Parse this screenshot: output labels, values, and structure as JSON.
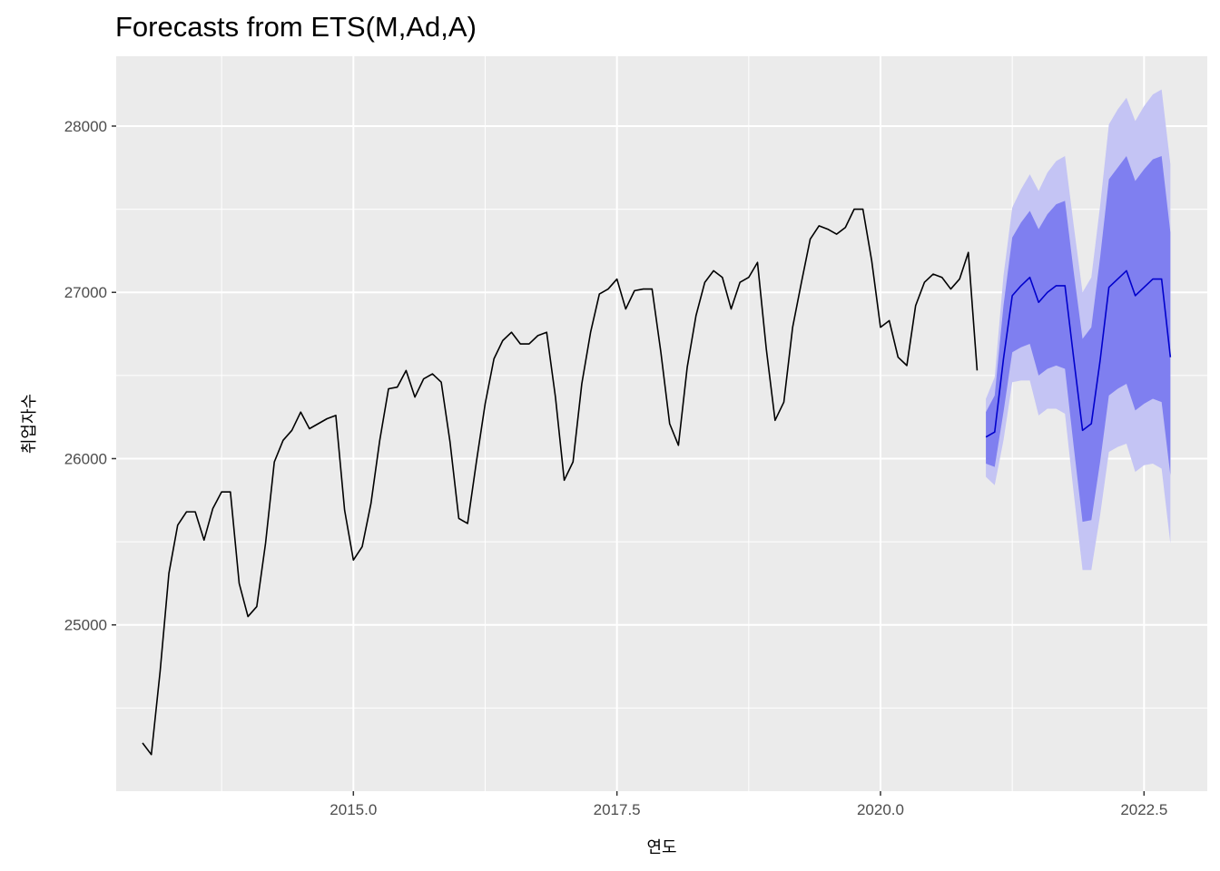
{
  "chart_data": {
    "type": "line",
    "title": "Forecasts from ETS(M,Ad,A)",
    "xlabel": "연도",
    "ylabel": "취업자수",
    "xlim": [
      2012.75,
      2023.1
    ],
    "ylim": [
      24000,
      28420
    ],
    "x_ticks": [
      2015.0,
      2017.5,
      2020.0,
      2022.5
    ],
    "x_tick_labels": [
      "2015.0",
      "2017.5",
      "2020.0",
      "2022.5"
    ],
    "y_ticks": [
      25000,
      26000,
      27000,
      28000
    ],
    "y_tick_labels": [
      "25000",
      "26000",
      "27000",
      "28000"
    ],
    "grid": true,
    "legend": "none",
    "colors": {
      "panel": "#ebebeb",
      "grid": "#ffffff",
      "history": "#000000",
      "forecast": "#0000cc",
      "band80": "#7f7ff0",
      "band95": "#c4c4f4"
    },
    "history": {
      "start": 2013.0,
      "frequency": 12,
      "values": [
        24290,
        24220,
        24720,
        25310,
        25600,
        25680,
        25680,
        25510,
        25700,
        25800,
        25800,
        25250,
        25050,
        25110,
        25490,
        25980,
        26110,
        26170,
        26280,
        26180,
        26210,
        26240,
        26260,
        25690,
        25390,
        25470,
        25730,
        26110,
        26420,
        26430,
        26530,
        26370,
        26480,
        26510,
        26460,
        26100,
        25640,
        25610,
        25980,
        26330,
        26600,
        26710,
        26760,
        26690,
        26690,
        26740,
        26760,
        26370,
        25870,
        25980,
        26450,
        26760,
        26990,
        27020,
        27080,
        26900,
        27010,
        27020,
        27020,
        26640,
        26210,
        26080,
        26550,
        26860,
        27060,
        27130,
        27090,
        26900,
        27060,
        27090,
        27180,
        26660,
        26230,
        26340,
        26790,
        27060,
        27320,
        27400,
        27380,
        27350,
        27390,
        27500,
        27500,
        27190,
        26790,
        26830,
        26610,
        26560,
        26920,
        27060,
        27110,
        27090,
        27020,
        27080,
        27240,
        26530
      ]
    },
    "forecast": {
      "start": 2021.0,
      "frequency": 12,
      "mean": [
        26130,
        26160,
        26600,
        26980,
        27040,
        27090,
        26940,
        27000,
        27040,
        27040,
        26600,
        26170,
        26210,
        26590,
        27030,
        27080,
        27130,
        26980,
        27030,
        27080,
        27080,
        26610
      ],
      "lo80": [
        25970,
        25950,
        26280,
        26640,
        26670,
        26690,
        26500,
        26540,
        26560,
        26540,
        26070,
        25620,
        25630,
        25980,
        26380,
        26420,
        26450,
        26290,
        26330,
        26360,
        26340,
        25900
      ],
      "hi80": [
        26280,
        26380,
        26920,
        27330,
        27420,
        27490,
        27380,
        27470,
        27530,
        27550,
        27120,
        26720,
        26790,
        27210,
        27680,
        27750,
        27820,
        27670,
        27740,
        27800,
        27820,
        27360
      ],
      "lo95": [
        25890,
        25840,
        26110,
        26460,
        26470,
        26470,
        26260,
        26300,
        26300,
        26270,
        25790,
        25330,
        25330,
        25660,
        26040,
        26070,
        26090,
        25920,
        25960,
        25970,
        25940,
        25490
      ],
      "hi95": [
        26360,
        26490,
        27100,
        27510,
        27620,
        27710,
        27610,
        27720,
        27790,
        27820,
        27400,
        27000,
        27090,
        27520,
        28010,
        28100,
        28170,
        28030,
        28120,
        28190,
        28220,
        27770
      ]
    }
  }
}
